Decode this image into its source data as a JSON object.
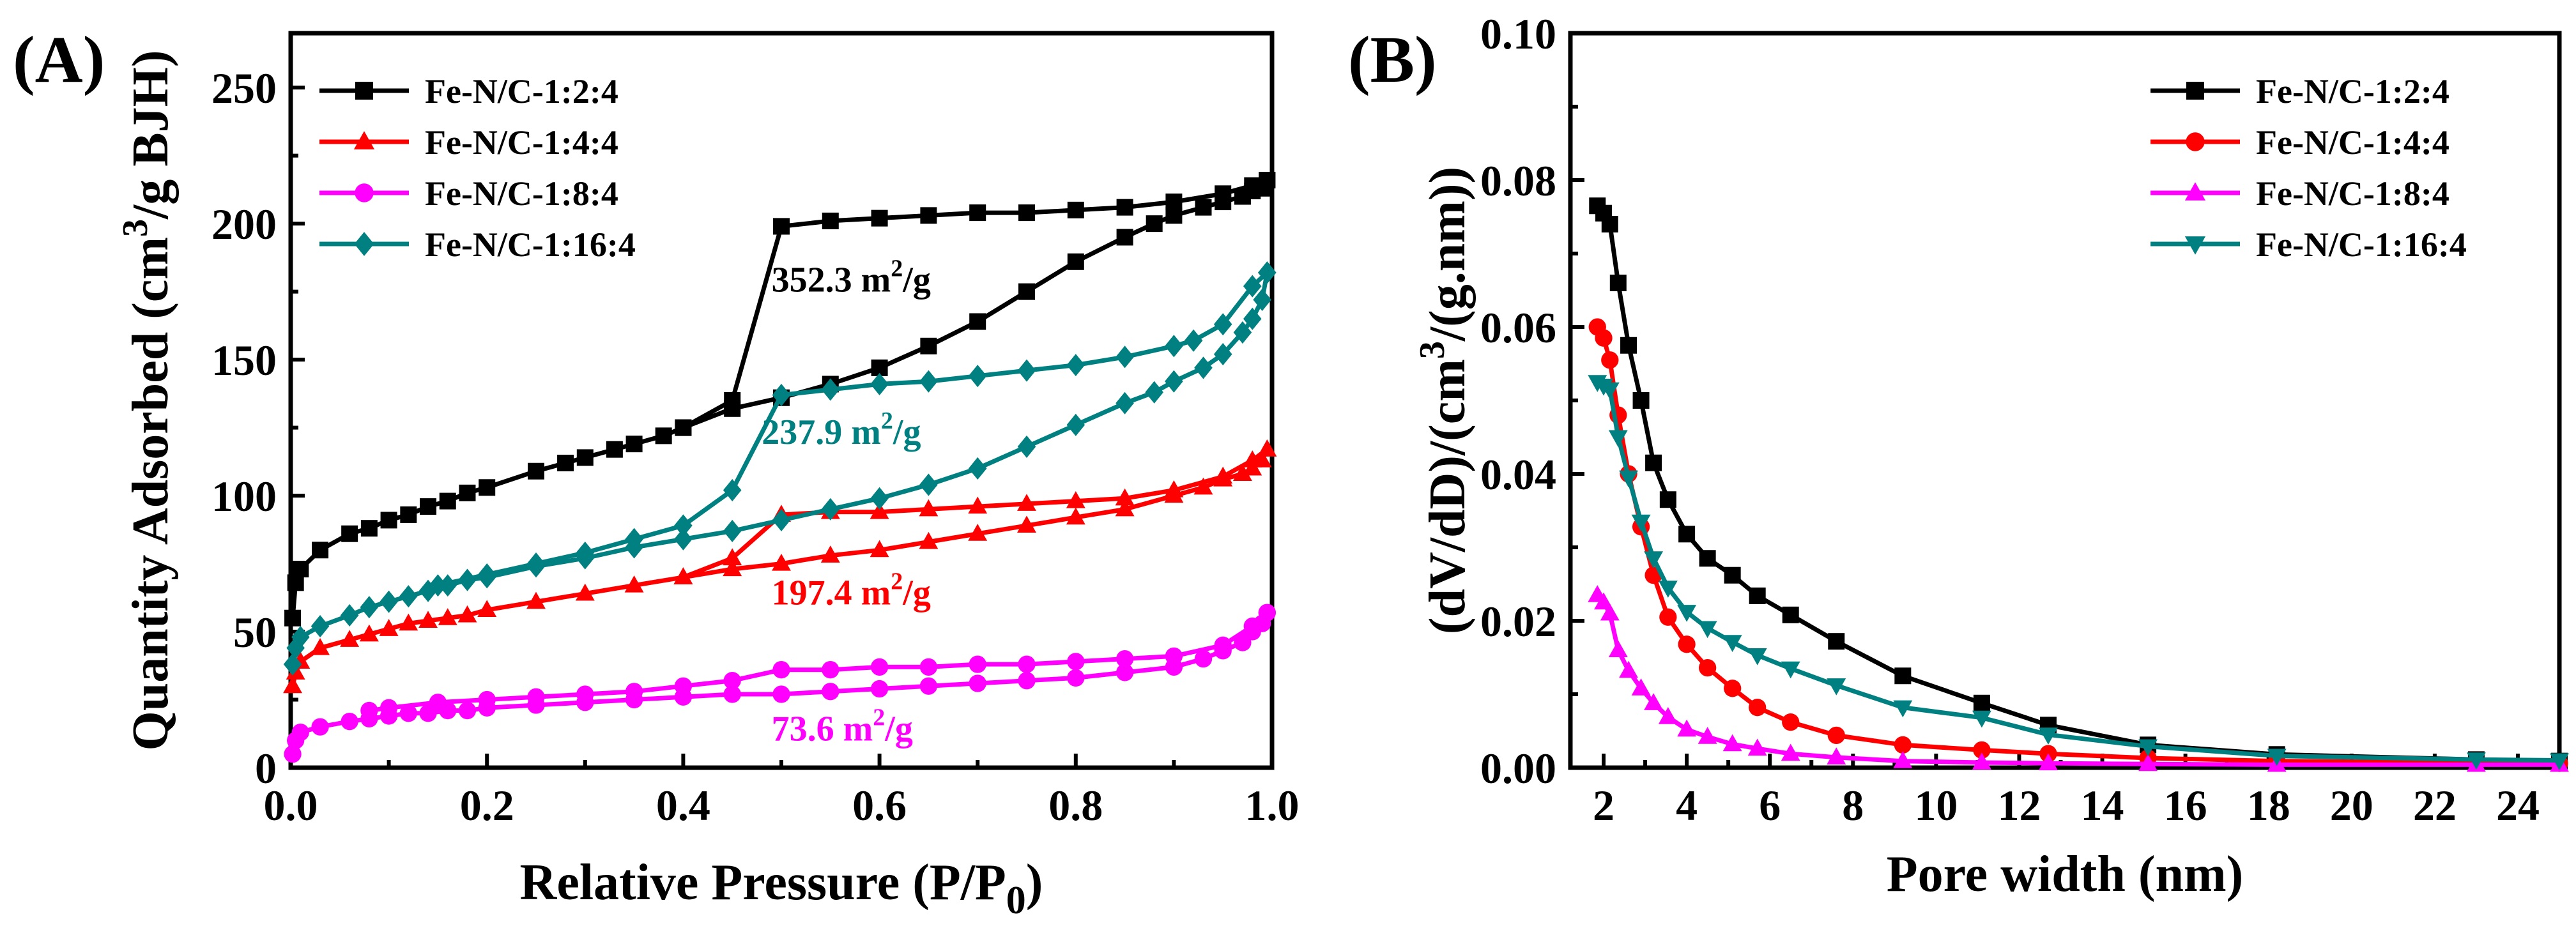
{
  "chart_data": [
    {
      "panel": "(A)",
      "type": "line",
      "xlabel": "Relative Pressure (P/P",
      "xlabel_sub": "0",
      "xlabel_end": ")",
      "ylabel_pre": "Quantity Adsorbed (cm",
      "ylabel_sup": "3",
      "ylabel_post": "/g BJH)",
      "xlim": [
        0,
        1.0
      ],
      "ylim": [
        0,
        270
      ],
      "xticks": [
        0.0,
        0.2,
        0.4,
        0.6,
        0.8,
        1.0
      ],
      "xticklabels": [
        "0.0",
        "0.2",
        "0.4",
        "0.6",
        "0.8",
        "1.0"
      ],
      "yticks": [
        0,
        50,
        100,
        150,
        200,
        250
      ],
      "yticklabels": [
        "0",
        "50",
        "100",
        "150",
        "200",
        "250"
      ],
      "legend_position": "top-left",
      "series": [
        {
          "name": "Fe-N/C-1:2:4",
          "color": "#000000",
          "marker": "square",
          "x": [
            0.002,
            0.005,
            0.01,
            0.03,
            0.06,
            0.08,
            0.1,
            0.12,
            0.14,
            0.16,
            0.18,
            0.2,
            0.25,
            0.28,
            0.3,
            0.33,
            0.35,
            0.38,
            0.4,
            0.45,
            0.5,
            0.55,
            0.6,
            0.65,
            0.7,
            0.75,
            0.8,
            0.85,
            0.88,
            0.9,
            0.93,
            0.95,
            0.97,
            0.98,
            0.99,
            0.995
          ],
          "y": [
            55,
            68,
            73,
            80,
            86,
            88,
            91,
            93,
            96,
            98,
            101,
            103,
            109,
            112,
            114,
            117,
            119,
            122,
            125,
            132,
            136,
            141,
            147,
            155,
            164,
            175,
            186,
            195,
            200,
            203,
            206,
            208,
            210,
            212,
            213,
            216
          ],
          "x_desorption": [
            0.995,
            0.98,
            0.95,
            0.9,
            0.85,
            0.8,
            0.75,
            0.7,
            0.65,
            0.6,
            0.55,
            0.5,
            0.45,
            0.4
          ],
          "y_desorption": [
            216,
            214,
            211,
            208,
            206,
            205,
            204,
            204,
            203,
            202,
            201,
            199,
            135,
            125
          ]
        },
        {
          "name": "Fe-N/C-1:4:4",
          "color": "#ff0000",
          "marker": "triangle",
          "x": [
            0.002,
            0.005,
            0.01,
            0.03,
            0.06,
            0.08,
            0.1,
            0.12,
            0.14,
            0.16,
            0.18,
            0.2,
            0.25,
            0.3,
            0.35,
            0.4,
            0.45,
            0.5,
            0.55,
            0.6,
            0.65,
            0.7,
            0.75,
            0.8,
            0.85,
            0.9,
            0.93,
            0.95,
            0.97,
            0.98,
            0.99,
            0.995
          ],
          "y": [
            30,
            35,
            39,
            44,
            47,
            49,
            51,
            53,
            54,
            55,
            56,
            58,
            61,
            64,
            67,
            70,
            73,
            75,
            78,
            80,
            83,
            86,
            89,
            92,
            95,
            100,
            103,
            106,
            108,
            110,
            113,
            117
          ],
          "x_desorption": [
            0.995,
            0.98,
            0.95,
            0.9,
            0.85,
            0.8,
            0.75,
            0.7,
            0.65,
            0.6,
            0.55,
            0.5,
            0.45,
            0.4
          ],
          "y_desorption": [
            117,
            113,
            107,
            102,
            99,
            98,
            97,
            96,
            95,
            94,
            94,
            93,
            77,
            70
          ]
        },
        {
          "name": "Fe-N/C-1:8:4",
          "color": "#ff00ff",
          "marker": "circle",
          "x": [
            0.002,
            0.005,
            0.01,
            0.03,
            0.06,
            0.08,
            0.1,
            0.12,
            0.14,
            0.16,
            0.18,
            0.2,
            0.25,
            0.3,
            0.35,
            0.4,
            0.45,
            0.5,
            0.55,
            0.6,
            0.65,
            0.7,
            0.75,
            0.8,
            0.85,
            0.9,
            0.93,
            0.95,
            0.97,
            0.98,
            0.99,
            0.995
          ],
          "y": [
            5,
            10,
            13,
            15,
            17,
            18,
            19,
            20,
            20,
            21,
            21,
            22,
            23,
            24,
            25,
            26,
            27,
            27,
            28,
            29,
            30,
            31,
            32,
            33,
            35,
            37,
            40,
            43,
            46,
            50,
            53,
            57
          ],
          "x_desorption": [
            0.995,
            0.98,
            0.95,
            0.9,
            0.85,
            0.8,
            0.75,
            0.7,
            0.65,
            0.6,
            0.55,
            0.5,
            0.45,
            0.4,
            0.35,
            0.3,
            0.25,
            0.2,
            0.15,
            0.1,
            0.08
          ],
          "y_desorption": [
            57,
            52,
            45,
            41,
            40,
            39,
            38,
            38,
            37,
            37,
            36,
            36,
            32,
            30,
            28,
            27,
            26,
            25,
            24,
            22,
            21
          ]
        },
        {
          "name": "Fe-N/C-1:16:4",
          "color": "#008080",
          "marker": "diamond",
          "x": [
            0.002,
            0.005,
            0.01,
            0.03,
            0.06,
            0.08,
            0.1,
            0.12,
            0.14,
            0.16,
            0.18,
            0.2,
            0.25,
            0.3,
            0.35,
            0.4,
            0.45,
            0.5,
            0.55,
            0.6,
            0.65,
            0.7,
            0.75,
            0.8,
            0.85,
            0.88,
            0.9,
            0.93,
            0.95,
            0.97,
            0.98,
            0.99,
            0.995
          ],
          "y": [
            38,
            44,
            48,
            52,
            56,
            59,
            61,
            63,
            65,
            67,
            69,
            70,
            74,
            77,
            81,
            84,
            87,
            91,
            95,
            99,
            104,
            110,
            118,
            126,
            134,
            138,
            142,
            147,
            152,
            160,
            165,
            172,
            182
          ],
          "x_desorption": [
            0.995,
            0.98,
            0.95,
            0.92,
            0.9,
            0.85,
            0.8,
            0.75,
            0.7,
            0.65,
            0.6,
            0.55,
            0.5,
            0.45,
            0.4,
            0.35,
            0.3,
            0.25,
            0.2,
            0.15
          ],
          "y_desorption": [
            182,
            177,
            163,
            157,
            155,
            151,
            148,
            146,
            144,
            142,
            141,
            139,
            137,
            102,
            89,
            84,
            79,
            75,
            71,
            67
          ]
        }
      ],
      "annotations": [
        {
          "text": "352.3 m",
          "sup": "2",
          "tail": "/g",
          "x": 0.49,
          "y": 175,
          "color": "#000000"
        },
        {
          "text": "237.9 m",
          "sup": "2",
          "tail": "/g",
          "x": 0.48,
          "y": 119,
          "color": "#008080"
        },
        {
          "text": "197.4 m",
          "sup": "2",
          "tail": "/g",
          "x": 0.49,
          "y": 60,
          "color": "#ff0000"
        },
        {
          "text": "73.6 m",
          "sup": "2",
          "tail": "/g",
          "x": 0.49,
          "y": 10,
          "color": "#ff00ff"
        }
      ]
    },
    {
      "panel": "(B)",
      "type": "line",
      "xlabel": "Pore width (nm)",
      "ylabel_pre": "(dV/dD)/(cm",
      "ylabel_sup": "3",
      "ylabel_post": "/(g.nm))",
      "xlim": [
        1.2,
        25
      ],
      "ylim": [
        0,
        0.1
      ],
      "xticks": [
        2,
        4,
        6,
        8,
        10,
        12,
        14,
        16,
        18,
        20,
        22,
        24
      ],
      "xticklabels": [
        "2",
        "4",
        "6",
        "8",
        "10",
        "12",
        "14",
        "16",
        "18",
        "20",
        "22",
        "24"
      ],
      "yticks": [
        0,
        0.02,
        0.04,
        0.06,
        0.08,
        0.1
      ],
      "yticklabels": [
        "0.00",
        "0.02",
        "0.04",
        "0.06",
        "0.08",
        "0.10"
      ],
      "legend_position": "top-right",
      "series": [
        {
          "name": "Fe-N/C-1:2:4",
          "color": "#000000",
          "marker": "square",
          "x": [
            1.85,
            2.0,
            2.15,
            2.35,
            2.6,
            2.9,
            3.2,
            3.55,
            4.0,
            4.5,
            5.1,
            5.7,
            6.5,
            7.6,
            9.2,
            11.1,
            12.7,
            15.1,
            18.2,
            23.0,
            25.0
          ],
          "y": [
            0.0765,
            0.0755,
            0.074,
            0.066,
            0.0575,
            0.05,
            0.0415,
            0.0365,
            0.0318,
            0.0285,
            0.0262,
            0.0234,
            0.0208,
            0.0172,
            0.0125,
            0.0088,
            0.0058,
            0.0031,
            0.0018,
            0.0011,
            0.0009
          ]
        },
        {
          "name": "Fe-N/C-1:4:4",
          "color": "#ff0000",
          "marker": "circle",
          "x": [
            1.85,
            2.0,
            2.15,
            2.35,
            2.6,
            2.9,
            3.2,
            3.55,
            4.0,
            4.5,
            5.1,
            5.7,
            6.5,
            7.6,
            9.2,
            11.1,
            12.7,
            15.1,
            18.2,
            23.0,
            25.0
          ],
          "y": [
            0.06,
            0.0585,
            0.0555,
            0.048,
            0.04,
            0.0328,
            0.0262,
            0.0205,
            0.0168,
            0.0136,
            0.0108,
            0.0082,
            0.0062,
            0.0044,
            0.0031,
            0.0024,
            0.0019,
            0.0013,
            0.0009,
            0.0007,
            0.0006
          ]
        },
        {
          "name": "Fe-N/C-1:8:4",
          "color": "#ff00ff",
          "marker": "triangle",
          "x": [
            1.85,
            2.0,
            2.15,
            2.35,
            2.6,
            2.9,
            3.2,
            3.55,
            4.0,
            4.5,
            5.1,
            5.7,
            6.5,
            7.6,
            9.2,
            11.1,
            12.7,
            15.1,
            18.2,
            23.0,
            25.0
          ],
          "y": [
            0.0235,
            0.0225,
            0.021,
            0.016,
            0.0132,
            0.0108,
            0.0088,
            0.0069,
            0.0052,
            0.0042,
            0.0032,
            0.0026,
            0.0019,
            0.0014,
            0.0009,
            0.0007,
            0.0006,
            0.0005,
            0.0004,
            0.0004,
            0.0004
          ]
        },
        {
          "name": "Fe-N/C-1:16:4",
          "color": "#008080",
          "marker": "triangle-down",
          "x": [
            1.85,
            2.0,
            2.15,
            2.35,
            2.6,
            2.9,
            3.2,
            3.55,
            4.0,
            4.5,
            5.1,
            5.7,
            6.5,
            7.6,
            9.2,
            11.1,
            12.7,
            15.1,
            18.2,
            23.0,
            25.0
          ],
          "y": [
            0.0525,
            0.052,
            0.0515,
            0.045,
            0.0395,
            0.0335,
            0.0285,
            0.0245,
            0.0212,
            0.019,
            0.0171,
            0.0153,
            0.0135,
            0.0112,
            0.0082,
            0.0068,
            0.0045,
            0.0029,
            0.0016,
            0.0011,
            0.001
          ]
        }
      ]
    }
  ]
}
